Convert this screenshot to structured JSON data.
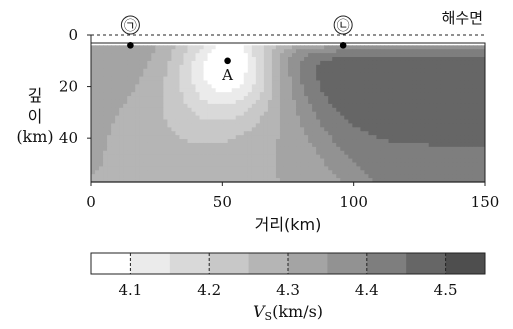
{
  "chart_data": {
    "type": "heatmap",
    "title": "",
    "main_plot": {
      "xlabel": "거리(km)",
      "ylabel_parts": [
        "깊",
        "이",
        "(km)"
      ],
      "xlim": [
        0,
        150
      ],
      "ylim": [
        0,
        57
      ],
      "y_inverted": true,
      "x_ticks": [
        "0",
        "50",
        "100",
        "150"
      ],
      "y_ticks": [
        "0",
        "20",
        "40"
      ],
      "sea_level_label": "해수면",
      "data_top_depth_km": 4,
      "points": [
        {
          "name": "㉠",
          "x": 15,
          "y": 4
        },
        {
          "name": "㉡",
          "x": 96,
          "y": 4
        },
        {
          "name": "A",
          "x": 52,
          "y": 10
        }
      ]
    },
    "colorbar": {
      "label_prefix": "V",
      "label_subscript": "S",
      "label_suffix": "(km/s)",
      "ticks": [
        "4.1",
        "4.2",
        "4.3",
        "4.4",
        "4.5"
      ],
      "tick_values": [
        4.1,
        4.2,
        4.3,
        4.4,
        4.5
      ],
      "range": [
        4.05,
        4.55
      ],
      "levels": 10
    },
    "colors": [
      "#ffffff",
      "#ebebeb",
      "#d9d9d9",
      "#c8c8c8",
      "#b5b5b5",
      "#a4a4a4",
      "#929292",
      "#7e7e7e",
      "#666666",
      "#4e4e4e"
    ]
  }
}
